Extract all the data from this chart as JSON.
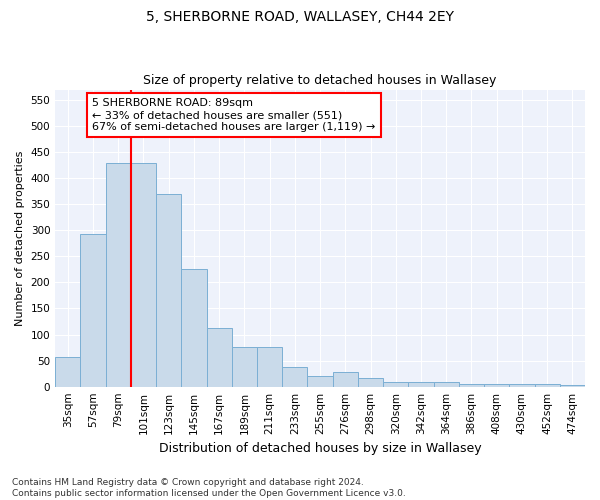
{
  "title1": "5, SHERBORNE ROAD, WALLASEY, CH44 2EY",
  "title2": "Size of property relative to detached houses in Wallasey",
  "xlabel": "Distribution of detached houses by size in Wallasey",
  "ylabel": "Number of detached properties",
  "categories": [
    "35sqm",
    "57sqm",
    "79sqm",
    "101sqm",
    "123sqm",
    "145sqm",
    "167sqm",
    "189sqm",
    "211sqm",
    "233sqm",
    "255sqm",
    "276sqm",
    "298sqm",
    "320sqm",
    "342sqm",
    "364sqm",
    "386sqm",
    "408sqm",
    "430sqm",
    "452sqm",
    "474sqm"
  ],
  "values": [
    57,
    293,
    430,
    430,
    370,
    225,
    113,
    76,
    76,
    38,
    20,
    28,
    16,
    9,
    9,
    9,
    6,
    5,
    5,
    5,
    3
  ],
  "bar_color": "#c9daea",
  "bar_edge_color": "#7bafd4",
  "annotation_text": "5 SHERBORNE ROAD: 89sqm\n← 33% of detached houses are smaller (551)\n67% of semi-detached houses are larger (1,119) →",
  "annotation_box_color": "white",
  "annotation_box_edge": "red",
  "vline_color": "red",
  "vline_x_index": 2.5,
  "ylim": [
    0,
    570
  ],
  "yticks": [
    0,
    50,
    100,
    150,
    200,
    250,
    300,
    350,
    400,
    450,
    500,
    550
  ],
  "footnote": "Contains HM Land Registry data © Crown copyright and database right 2024.\nContains public sector information licensed under the Open Government Licence v3.0.",
  "bg_color": "#eef2fb",
  "title1_fontsize": 10,
  "title2_fontsize": 9,
  "xlabel_fontsize": 9,
  "ylabel_fontsize": 8,
  "tick_fontsize": 7.5,
  "footnote_fontsize": 6.5
}
